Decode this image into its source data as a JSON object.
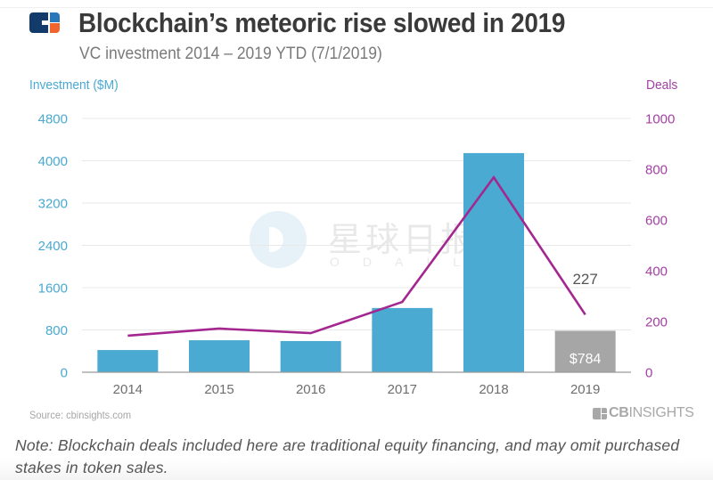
{
  "header": {
    "logo": "cb-insights-logo-icon",
    "title": "Blockchain’s meteoric rise slowed in 2019",
    "subtitle": "VC investment 2014 – 2019 YTD (7/1/2019)"
  },
  "watermark": {
    "text_cn": "星球日报",
    "text_en": "ODAILY"
  },
  "footer": {
    "source": "Source: cbinsights.com",
    "brand_bold": "CB",
    "brand_rest": "INSIGHTS",
    "note": "Note: Blockchain deals included here are traditional equity financing, and may omit purchased stakes in token sales."
  },
  "colors": {
    "bar": "#4aaad1",
    "bar_ytd": "#a6a6a6",
    "line": "#a3278f",
    "left_axis": "#4aa9d2",
    "right_axis": "#a33fa5",
    "grid": "#e8e8e8",
    "baseline": "#9a9a9a"
  },
  "chart_data": {
    "type": "bar",
    "title": "Blockchain’s meteoric rise slowed in 2019",
    "subtitle": "VC investment 2014 – 2019 YTD (7/1/2019)",
    "categories": [
      "2014",
      "2015",
      "2016",
      "2017",
      "2018",
      "2019"
    ],
    "series": [
      {
        "name": "Investment ($M)",
        "type": "bar",
        "axis": "left",
        "values": [
          420,
          605,
          590,
          1215,
          4145,
          784
        ],
        "highlight_index": 5,
        "data_labels": {
          "5": "$784"
        }
      },
      {
        "name": "Deals",
        "type": "line",
        "axis": "right",
        "values": [
          144,
          172,
          154,
          277,
          768,
          227
        ],
        "data_labels": {
          "5": "227"
        }
      }
    ],
    "left_axis": {
      "label": "Investment ($M)",
      "ylim": [
        0,
        4800
      ],
      "ticks": [
        0,
        800,
        1600,
        2400,
        3200,
        4000,
        4800
      ]
    },
    "right_axis": {
      "label": "Deals",
      "ylim": [
        0,
        1000
      ],
      "ticks": [
        0,
        200,
        400,
        600,
        800,
        1000
      ]
    },
    "xlabel": "",
    "grid": true,
    "legend": "none"
  }
}
